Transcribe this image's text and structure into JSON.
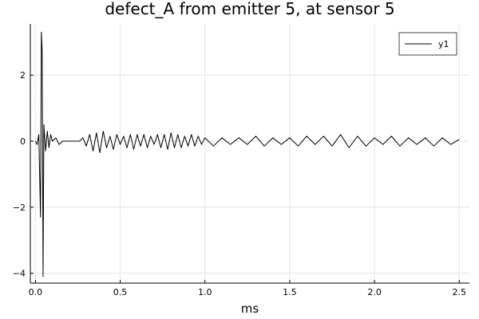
{
  "chart_data": {
    "type": "line",
    "title": "defect_A from emitter 5, at sensor 5",
    "xlabel": "ms",
    "ylabel": "",
    "xlim": [
      -0.03,
      2.56
    ],
    "ylim": [
      -4.3,
      3.55
    ],
    "xticks": [
      0.0,
      0.5,
      1.0,
      1.5,
      2.0,
      2.5
    ],
    "xtick_labels": [
      "0.0",
      "0.5",
      "1.0",
      "1.5",
      "2.0",
      "2.5"
    ],
    "yticks": [
      -4,
      -2,
      0,
      2
    ],
    "ytick_labels": [
      "−4",
      "−2",
      "0",
      "2"
    ],
    "grid": true,
    "legend_position": "top-right",
    "series": [
      {
        "name": "y1",
        "color": "#000000",
        "x": [
          0.0,
          0.01,
          0.02,
          0.03,
          0.035,
          0.04,
          0.045,
          0.05,
          0.06,
          0.07,
          0.08,
          0.09,
          0.1,
          0.12,
          0.14,
          0.16,
          0.18,
          0.2,
          0.22,
          0.24,
          0.26,
          0.28,
          0.3,
          0.32,
          0.34,
          0.36,
          0.38,
          0.4,
          0.42,
          0.44,
          0.46,
          0.48,
          0.5,
          0.52,
          0.54,
          0.56,
          0.58,
          0.6,
          0.62,
          0.64,
          0.66,
          0.68,
          0.7,
          0.72,
          0.74,
          0.76,
          0.78,
          0.8,
          0.82,
          0.84,
          0.86,
          0.88,
          0.9,
          0.92,
          0.94,
          0.96,
          0.98,
          1.0,
          1.05,
          1.1,
          1.15,
          1.2,
          1.25,
          1.3,
          1.35,
          1.4,
          1.45,
          1.5,
          1.55,
          1.6,
          1.65,
          1.7,
          1.75,
          1.8,
          1.85,
          1.9,
          1.95,
          2.0,
          2.05,
          2.1,
          2.15,
          2.2,
          2.25,
          2.3,
          2.35,
          2.4,
          2.45,
          2.5
        ],
        "y": [
          0.0,
          -0.1,
          0.2,
          -2.3,
          3.3,
          2.7,
          -4.1,
          0.5,
          -0.3,
          0.3,
          -0.2,
          0.2,
          0.0,
          0.1,
          -0.1,
          0.0,
          0.0,
          0.0,
          0.0,
          0.0,
          0.0,
          0.1,
          -0.15,
          0.2,
          -0.3,
          0.25,
          -0.35,
          0.3,
          -0.2,
          0.15,
          -0.25,
          0.2,
          -0.1,
          0.15,
          -0.2,
          0.2,
          -0.25,
          0.2,
          -0.15,
          0.2,
          -0.2,
          0.15,
          -0.1,
          0.2,
          -0.2,
          0.2,
          -0.25,
          0.25,
          -0.2,
          0.2,
          -0.2,
          0.15,
          -0.15,
          0.2,
          -0.15,
          0.15,
          -0.1,
          0.1,
          -0.15,
          0.1,
          -0.1,
          0.1,
          -0.1,
          0.15,
          -0.15,
          0.1,
          -0.1,
          0.1,
          -0.15,
          0.15,
          -0.1,
          0.15,
          -0.15,
          0.2,
          -0.2,
          0.15,
          -0.15,
          0.1,
          -0.1,
          0.15,
          -0.15,
          0.1,
          -0.1,
          0.1,
          -0.15,
          0.1,
          -0.1,
          0.05
        ]
      }
    ]
  }
}
